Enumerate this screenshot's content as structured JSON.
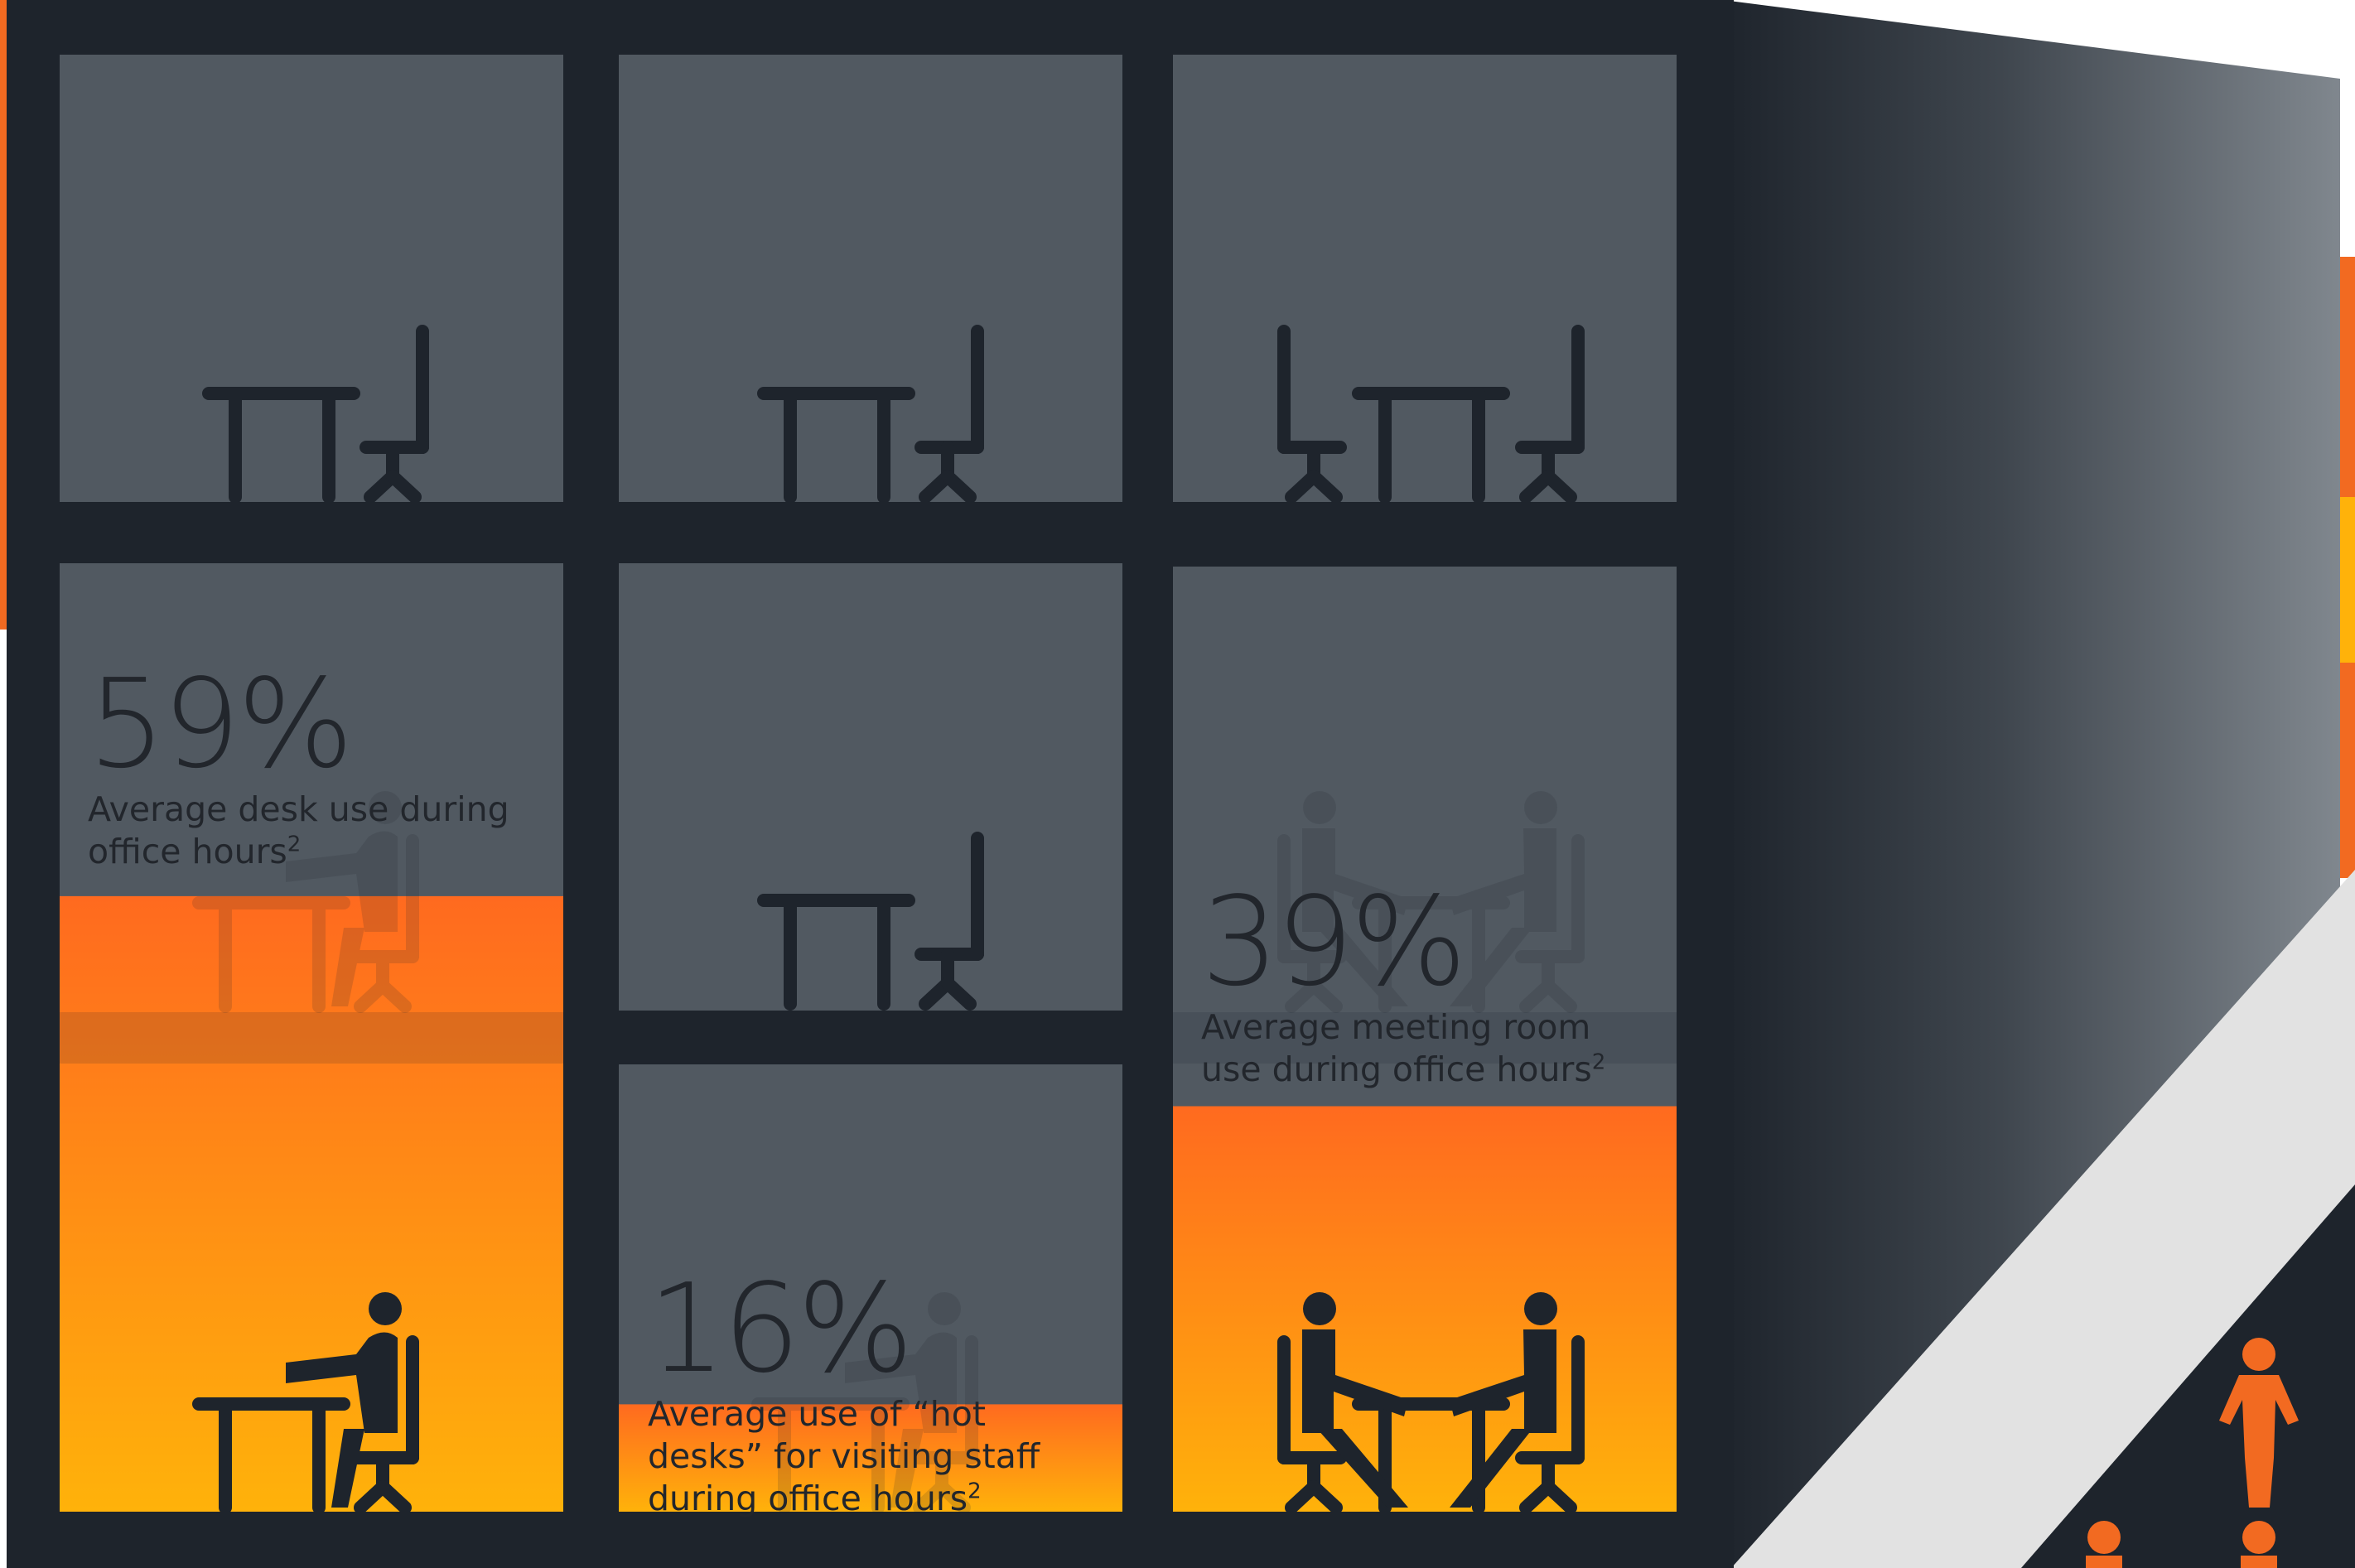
{
  "colors": {
    "frame": "#1e242c",
    "room_empty": "#515961",
    "fill_top": "#ff6a1f",
    "fill_bottom": "#ffb20a",
    "figure": "#1e242c",
    "accent_person": "#f26a21",
    "road": "#e2e2e2"
  },
  "stats": [
    {
      "value": "59%",
      "text": "Average desk use during office hours",
      "note": "2",
      "fraction": 0.59
    },
    {
      "value": "16%",
      "text": "Average use of “hot desks” for visiting staff during office hours",
      "note": "2",
      "fraction": 0.16
    },
    {
      "value": "39%",
      "text": "Average meeting room use during office hours",
      "note": "2",
      "fraction": 0.39
    }
  ],
  "icons": [
    "desk-icon",
    "chair-icon",
    "seated-person-icon",
    "standing-person-icon"
  ]
}
